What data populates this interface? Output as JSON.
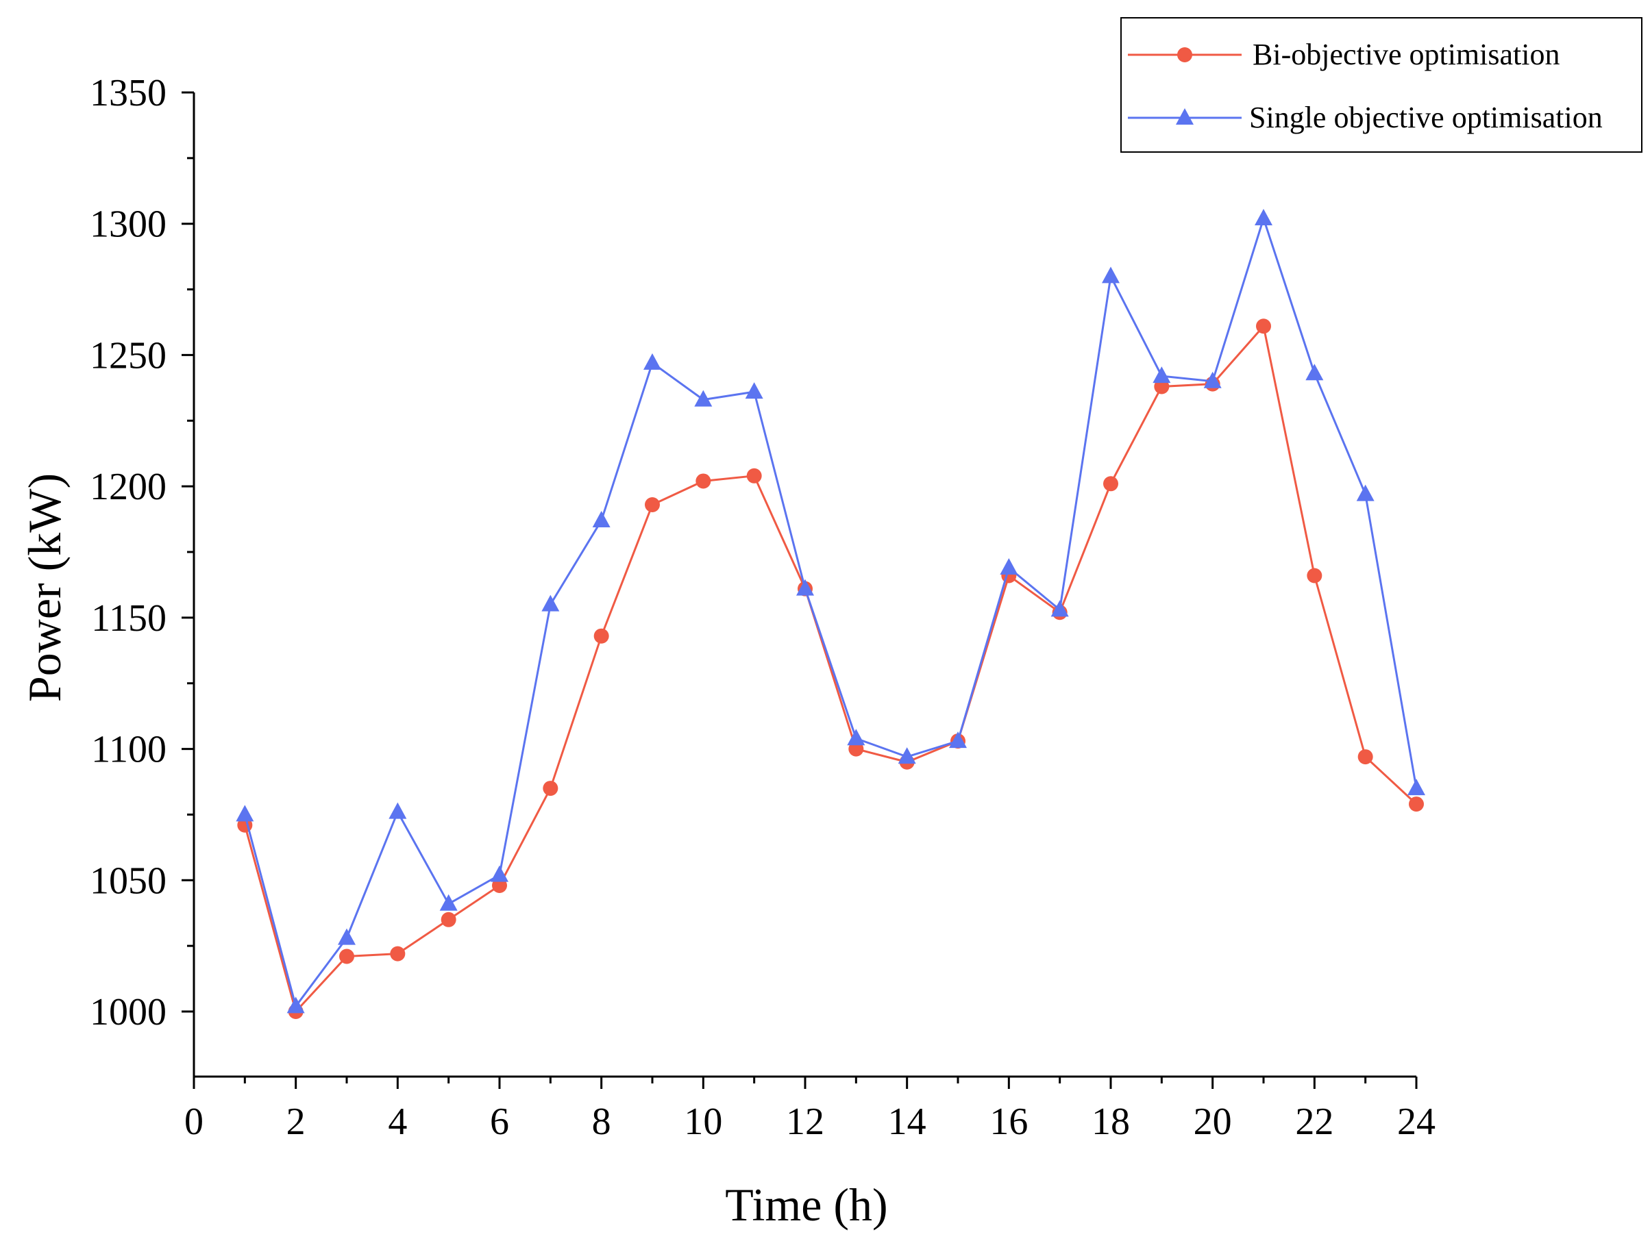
{
  "chart_data": {
    "type": "line",
    "title": "",
    "xlabel": "Time (h)",
    "ylabel": "Power (kW)",
    "xlim": [
      0,
      24
    ],
    "ylim": [
      975,
      1350
    ],
    "x_ticks": [
      0,
      2,
      4,
      6,
      8,
      10,
      12,
      14,
      16,
      18,
      20,
      22,
      24
    ],
    "y_ticks": [
      1000,
      1050,
      1100,
      1150,
      1200,
      1250,
      1300,
      1350
    ],
    "x": [
      1,
      2,
      3,
      4,
      5,
      6,
      7,
      8,
      9,
      10,
      11,
      12,
      13,
      14,
      15,
      16,
      17,
      18,
      19,
      20,
      21,
      22,
      23,
      24
    ],
    "legend_position": "top-right",
    "grid": false,
    "series": [
      {
        "name": "Bi-objective optimisation",
        "color": "#f05a44",
        "marker": "circle",
        "values": [
          1071,
          1000,
          1021,
          1022,
          1035,
          1048,
          1085,
          1143,
          1193,
          1202,
          1204,
          1161,
          1100,
          1095,
          1103,
          1166,
          1152,
          1201,
          1238,
          1239,
          1261,
          1166,
          1097,
          1079
        ]
      },
      {
        "name": "Single objective optimisation",
        "color": "#5b74f0",
        "marker": "triangle",
        "values": [
          1075,
          1002,
          1028,
          1076,
          1041,
          1052,
          1155,
          1187,
          1247,
          1233,
          1236,
          1161,
          1104,
          1097,
          1103,
          1169,
          1153,
          1280,
          1242,
          1240,
          1302,
          1243,
          1197,
          1085
        ]
      }
    ]
  }
}
